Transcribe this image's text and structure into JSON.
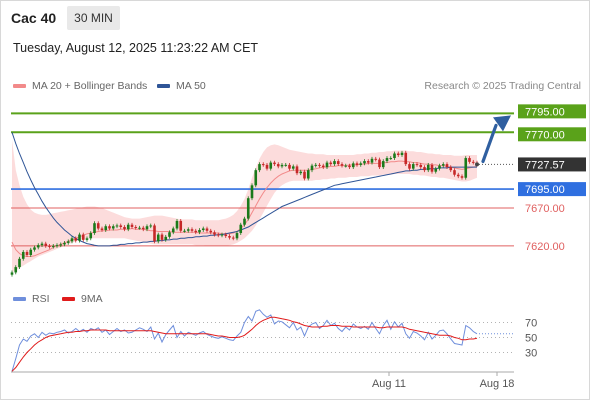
{
  "header": {
    "symbol": "Cac 40",
    "interval": "30 MIN",
    "datetime": "Tuesday, August 12, 2025 11:23:22 AM CET"
  },
  "legend": {
    "ma20_label": "MA 20 + Bollinger Bands",
    "ma20_color": "#f28a8a",
    "ma50_label": "MA 50",
    "ma50_color": "#2f5597"
  },
  "credit": "Research © 2025 Trading Central",
  "rsi_legend": {
    "rsi_label": "RSI",
    "rsi_color": "#6f8fdc",
    "ma_label": "9MA",
    "ma_color": "#e01b1b"
  },
  "colors": {
    "resistance": "#5aa21a",
    "pivot": "#2f6fe0",
    "support": "#e06060",
    "last_price_bg": "#333333",
    "candle": "#1a7a1a",
    "candle_down": "#c62828",
    "arrow": "#2f5fa0",
    "band_fill": "#fbd6d6"
  },
  "chart_data": [
    {
      "type": "candlestick",
      "title": "Cac 40",
      "ylim": [
        7575,
        7810
      ],
      "x_tick_labels": [
        "Aug 11",
        "Aug 18"
      ],
      "levels": [
        {
          "label": "7795.00",
          "value": 7795.0,
          "kind": "resistance"
        },
        {
          "label": "7770.00",
          "value": 7770.0,
          "kind": "resistance"
        },
        {
          "label": "7727.57",
          "value": 7727.57,
          "kind": "last"
        },
        {
          "label": "7695.00",
          "value": 7695.0,
          "kind": "pivot"
        },
        {
          "label": "7670.00",
          "value": 7670.0,
          "kind": "support"
        },
        {
          "label": "7620.00",
          "value": 7620.0,
          "kind": "support"
        }
      ],
      "close": [
        7585,
        7592,
        7603,
        7612,
        7608,
        7615,
        7618,
        7621,
        7623,
        7620,
        7619,
        7620,
        7621,
        7622,
        7624,
        7626,
        7630,
        7627,
        7635,
        7628,
        7630,
        7637,
        7650,
        7643,
        7641,
        7646,
        7643,
        7646,
        7647,
        7645,
        7642,
        7648,
        7645,
        7644,
        7644,
        7642,
        7646,
        7647,
        7626,
        7635,
        7628,
        7632,
        7638,
        7643,
        7653,
        7640,
        7640,
        7642,
        7640,
        7638,
        7641,
        7643,
        7640,
        7638,
        7635,
        7634,
        7635,
        7633,
        7631,
        7630,
        7637,
        7648,
        7656,
        7683,
        7700,
        7720,
        7728,
        7727,
        7722,
        7730,
        7728,
        7725,
        7727,
        7727,
        7722,
        7725,
        7716,
        7718,
        7709,
        7720,
        7726,
        7727,
        7726,
        7724,
        7730,
        7728,
        7732,
        7728,
        7726,
        7726,
        7724,
        7729,
        7727,
        7729,
        7732,
        7730,
        7735,
        7734,
        7724,
        7732,
        7736,
        7736,
        7742,
        7740,
        7743,
        7728,
        7722,
        7728,
        7727,
        7724,
        7720,
        7727,
        7718,
        7722,
        7726,
        7728,
        7724,
        7720,
        7714,
        7712,
        7710,
        7736,
        7731,
        7730,
        7727.57
      ],
      "ma20": [
        7625,
        7615,
        7610,
        7607,
        7606,
        7606,
        7607,
        7609,
        7611,
        7613,
        7615,
        7618,
        7620,
        7622,
        7624,
        7626,
        7628,
        7630,
        7632,
        7634,
        7636,
        7637,
        7638,
        7639,
        7640,
        7640,
        7641,
        7641,
        7641,
        7642,
        7642,
        7642,
        7643,
        7642,
        7642,
        7642,
        7641,
        7640,
        7640,
        7639,
        7639,
        7639,
        7639,
        7638,
        7638,
        7638,
        7638,
        7638,
        7638,
        7638,
        7637,
        7637,
        7637,
        7637,
        7637,
        7637,
        7636,
        7636,
        7636,
        7637,
        7639,
        7643,
        7648,
        7655,
        7664,
        7673,
        7682,
        7690,
        7697,
        7703,
        7708,
        7712,
        7715,
        7717,
        7719,
        7720,
        7720,
        7720,
        7720,
        7720,
        7721,
        7722,
        7723,
        7724,
        7724,
        7725,
        7725,
        7726,
        7726,
        7726,
        7727,
        7727,
        7727,
        7728,
        7728,
        7729,
        7729,
        7729,
        7729,
        7730,
        7730,
        7731,
        7731,
        7732,
        7732,
        7731,
        7731,
        7730,
        7730,
        7729,
        7728,
        7728,
        7727,
        7727,
        7726,
        7726,
        7725,
        7724,
        7723,
        7722,
        7721,
        7722,
        7723,
        7724,
        7725
      ],
      "bb_upper": [
        7760,
        7720,
        7700,
        7685,
        7675,
        7668,
        7664,
        7662,
        7661,
        7661,
        7662,
        7663,
        7664,
        7665,
        7666,
        7667,
        7668,
        7669,
        7670,
        7671,
        7672,
        7672,
        7672,
        7671,
        7670,
        7668,
        7666,
        7664,
        7662,
        7660,
        7658,
        7657,
        7656,
        7656,
        7656,
        7657,
        7658,
        7659,
        7660,
        7660,
        7660,
        7659,
        7658,
        7657,
        7656,
        7655,
        7655,
        7655,
        7655,
        7654,
        7654,
        7654,
        7654,
        7654,
        7654,
        7654,
        7655,
        7656,
        7658,
        7661,
        7666,
        7673,
        7682,
        7695,
        7710,
        7723,
        7735,
        7744,
        7750,
        7753,
        7754,
        7753,
        7751,
        7749,
        7747,
        7746,
        7745,
        7744,
        7743,
        7742,
        7742,
        7741,
        7741,
        7741,
        7740,
        7740,
        7740,
        7740,
        7740,
        7740,
        7740,
        7740,
        7741,
        7741,
        7742,
        7742,
        7743,
        7743,
        7744,
        7744,
        7745,
        7745,
        7746,
        7746,
        7746,
        7746,
        7745,
        7745,
        7744,
        7744,
        7743,
        7742,
        7742,
        7741,
        7741,
        7740,
        7740,
        7740,
        7739,
        7739,
        7739,
        7740,
        7740,
        7740,
        7740
      ],
      "bb_lower": [
        7585,
        7588,
        7591,
        7594,
        7597,
        7600,
        7603,
        7606,
        7608,
        7610,
        7612,
        7614,
        7616,
        7618,
        7620,
        7622,
        7624,
        7626,
        7628,
        7629,
        7630,
        7630,
        7630,
        7630,
        7630,
        7630,
        7630,
        7630,
        7630,
        7630,
        7630,
        7629,
        7628,
        7627,
        7626,
        7625,
        7624,
        7623,
        7622,
        7622,
        7622,
        7622,
        7622,
        7622,
        7622,
        7622,
        7622,
        7622,
        7622,
        7621,
        7621,
        7621,
        7620,
        7620,
        7620,
        7620,
        7620,
        7620,
        7621,
        7622,
        7624,
        7627,
        7630,
        7635,
        7640,
        7647,
        7655,
        7664,
        7673,
        7682,
        7690,
        7696,
        7700,
        7703,
        7705,
        7706,
        7706,
        7706,
        7706,
        7706,
        7706,
        7707,
        7707,
        7708,
        7708,
        7709,
        7709,
        7710,
        7710,
        7710,
        7711,
        7711,
        7711,
        7712,
        7712,
        7712,
        7713,
        7713,
        7713,
        7714,
        7714,
        7714,
        7715,
        7715,
        7715,
        7715,
        7715,
        7714,
        7714,
        7713,
        7713,
        7712,
        7711,
        7711,
        7710,
        7710,
        7709,
        7708,
        7707,
        7706,
        7705,
        7705,
        7706,
        7708,
        7710
      ],
      "ma50": [
        7770,
        7755,
        7742,
        7730,
        7718,
        7707,
        7697,
        7688,
        7679,
        7671,
        7664,
        7657,
        7651,
        7646,
        7641,
        7637,
        7633,
        7630,
        7627,
        7625,
        7623,
        7622,
        7621,
        7620,
        7620,
        7620,
        7620,
        7621,
        7621,
        7622,
        7622,
        7623,
        7623,
        7624,
        7624,
        7625,
        7625,
        7626,
        7626,
        7627,
        7627,
        7628,
        7628,
        7629,
        7629,
        7630,
        7630,
        7631,
        7631,
        7632,
        7632,
        7633,
        7633,
        7634,
        7634,
        7635,
        7635,
        7636,
        7637,
        7638,
        7639,
        7641,
        7643,
        7645,
        7648,
        7651,
        7654,
        7657,
        7660,
        7663,
        7666,
        7669,
        7672,
        7674,
        7676,
        7678,
        7680,
        7682,
        7684,
        7686,
        7688,
        7690,
        7692,
        7694,
        7696,
        7698,
        7700,
        7701,
        7702,
        7703,
        7704,
        7705,
        7706,
        7707,
        7708,
        7709,
        7710,
        7711,
        7712,
        7713,
        7714,
        7715,
        7716,
        7717,
        7718,
        7719,
        7719,
        7720,
        7720,
        7721,
        7721,
        7722,
        7722,
        7722,
        7723,
        7723,
        7723,
        7724,
        7724,
        7724,
        7724,
        7724,
        7724,
        7724,
        7724
      ]
    },
    {
      "type": "line",
      "title": "RSI",
      "ylim": [
        0,
        100
      ],
      "y_ticks": [
        70,
        50,
        30
      ],
      "series": [
        {
          "name": "RSI",
          "values": [
            5,
            22,
            40,
            48,
            45,
            52,
            55,
            50,
            57,
            53,
            56,
            55,
            57,
            58,
            60,
            56,
            58,
            62,
            58,
            61,
            57,
            62,
            60,
            63,
            57,
            60,
            54,
            58,
            62,
            58,
            60,
            56,
            57,
            60,
            63,
            61,
            58,
            64,
            48,
            56,
            44,
            54,
            60,
            66,
            50,
            58,
            52,
            57,
            55,
            53,
            56,
            58,
            54,
            52,
            50,
            49,
            51,
            49,
            47,
            46,
            52,
            57,
            70,
            78,
            72,
            85,
            87,
            81,
            77,
            80,
            68,
            72,
            71,
            67,
            63,
            70,
            60,
            64,
            52,
            64,
            68,
            70,
            62,
            66,
            73,
            66,
            69,
            62,
            58,
            64,
            60,
            68,
            64,
            62,
            65,
            61,
            70,
            62,
            55,
            66,
            73,
            61,
            71,
            64,
            69,
            55,
            49,
            58,
            56,
            52,
            47,
            57,
            48,
            53,
            59,
            60,
            55,
            48,
            42,
            41,
            40,
            66,
            63,
            58,
            55
          ]
        },
        {
          "name": "9MA",
          "values": [
            5,
            10,
            17,
            24,
            30,
            35,
            40,
            44,
            47,
            50,
            52,
            53,
            54,
            55,
            56,
            57,
            57,
            58,
            58,
            59,
            59,
            60,
            60,
            60,
            60,
            60,
            59,
            59,
            59,
            59,
            59,
            59,
            59,
            59,
            59,
            59,
            59,
            59,
            58,
            57,
            56,
            55,
            55,
            55,
            55,
            55,
            55,
            55,
            55,
            55,
            55,
            55,
            55,
            54,
            53,
            52,
            52,
            51,
            50,
            50,
            50,
            51,
            53,
            57,
            61,
            66,
            70,
            73,
            75,
            77,
            77,
            76,
            75,
            74,
            73,
            71,
            70,
            68,
            66,
            65,
            64,
            64,
            64,
            65,
            65,
            66,
            66,
            66,
            65,
            65,
            65,
            64,
            64,
            64,
            64,
            64,
            64,
            64,
            63,
            63,
            64,
            64,
            64,
            64,
            64,
            63,
            61,
            60,
            59,
            58,
            57,
            56,
            55,
            54,
            53,
            53,
            53,
            52,
            50,
            49,
            47,
            47,
            48,
            48,
            49
          ]
        }
      ]
    }
  ]
}
